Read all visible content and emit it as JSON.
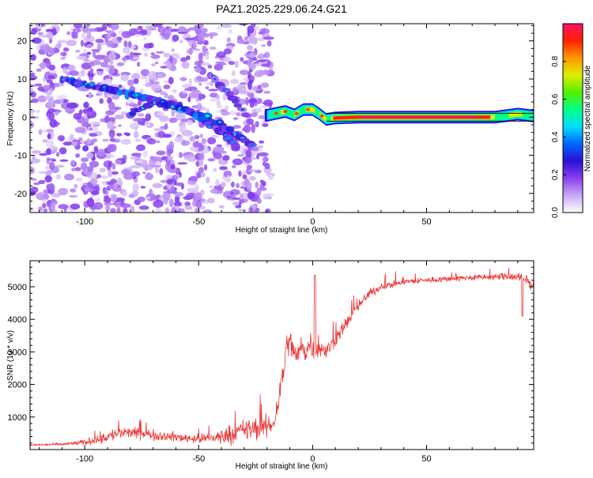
{
  "title": "PAZ1.2025.229.06.24.G21",
  "chart_data": [
    {
      "type": "heatmap",
      "xlabel": "Height of straight line (km)",
      "ylabel": "Frequency (Hz)",
      "xlim": [
        -124,
        97
      ],
      "ylim": [
        -25,
        24.5
      ],
      "xticks": [
        -100,
        -50,
        0,
        50
      ],
      "yticks": [
        -20,
        -10,
        0,
        10,
        20
      ],
      "colorbar": {
        "label": "Normalized spectral amplitude",
        "range": [
          0,
          1
        ],
        "ticks": [
          0.0,
          0.2,
          0.4,
          0.6,
          0.8
        ],
        "colors": [
          "#ffffff",
          "#c9a8f5",
          "#8a3ff0",
          "#2a10d8",
          "#0066ff",
          "#00ddff",
          "#00ff88",
          "#55ee00",
          "#ddee00",
          "#ff9900",
          "#ff2200",
          "#ff1166"
        ]
      },
      "features": [
        {
          "name": "coherent ray",
          "x": [
            -20,
            -16,
            -12,
            -8,
            -4,
            0,
            3,
            6,
            10,
            20,
            40,
            60,
            80,
            90,
            97
          ],
          "y": [
            0.5,
            1.0,
            1.5,
            0.6,
            2.0,
            2.0,
            0.8,
            -0.6,
            -0.2,
            0.0,
            0.0,
            0.0,
            0.0,
            0.8,
            0.3
          ],
          "amp": [
            0.42,
            0.45,
            0.5,
            0.55,
            0.5,
            0.55,
            0.6,
            0.7,
            0.85,
            0.95,
            0.95,
            0.95,
            0.9,
            0.7,
            0.5
          ]
        },
        {
          "name": "multipath branch 1",
          "x": [
            -110,
            -95,
            -80,
            -65,
            -50,
            -40,
            -30,
            -25
          ],
          "y": [
            10,
            8,
            6,
            4,
            1,
            -2,
            -6,
            -8
          ],
          "amp": [
            0.25,
            0.3,
            0.3,
            0.3,
            0.28,
            0.25,
            0.22,
            0.2
          ]
        },
        {
          "name": "multipath branch 2",
          "x": [
            -80,
            -70,
            -60,
            -50,
            -40,
            -33
          ],
          "y": [
            1,
            4,
            3,
            0,
            -4,
            -8
          ],
          "amp": [
            0.2,
            0.3,
            0.35,
            0.3,
            0.25,
            0.2
          ]
        },
        {
          "name": "multipath branch 3",
          "x": [
            -45,
            -40,
            -35,
            -30,
            -27
          ],
          "y": [
            11,
            8,
            5,
            1,
            -2
          ],
          "amp": [
            0.15,
            0.18,
            0.2,
            0.18,
            0.15
          ]
        }
      ]
    },
    {
      "type": "line",
      "xlabel": "Height of straight line (km)",
      "ylabel": "SNR (10 * v/v)",
      "xlim": [
        -124,
        97
      ],
      "ylim": [
        0,
        5800
      ],
      "xticks": [
        -100,
        -50,
        0,
        50
      ],
      "yticks": [
        1000,
        2000,
        3000,
        4000,
        5000
      ],
      "color": "#ee3333",
      "series": [
        {
          "x": [
            -124,
            -110,
            -100,
            -95,
            -90,
            -85,
            -80,
            -70,
            -60,
            -50,
            -45,
            -40,
            -35,
            -30,
            -25,
            -20,
            -17,
            -15,
            -13,
            -11,
            -9,
            -7,
            -5,
            -3,
            -1,
            1,
            3,
            6,
            10,
            15,
            20,
            25,
            30,
            40,
            50,
            60,
            70,
            80,
            85,
            90,
            93,
            95,
            97
          ],
          "mean": [
            140,
            160,
            220,
            320,
            400,
            500,
            520,
            450,
            380,
            330,
            350,
            400,
            500,
            600,
            650,
            700,
            800,
            1500,
            2400,
            3300,
            3200,
            2800,
            3200,
            3000,
            3300,
            3000,
            3100,
            3000,
            3400,
            3900,
            4400,
            4800,
            5000,
            5150,
            5200,
            5250,
            5280,
            5300,
            5320,
            5300,
            5200,
            5150,
            5000
          ],
          "noise": [
            60,
            60,
            120,
            250,
            280,
            300,
            250,
            230,
            220,
            200,
            280,
            350,
            450,
            500,
            550,
            500,
            400,
            600,
            700,
            700,
            600,
            550,
            500,
            500,
            550,
            500,
            450,
            400,
            350,
            300,
            250,
            200,
            180,
            150,
            140,
            140,
            140,
            150,
            180,
            250,
            300,
            280,
            250
          ]
        }
      ]
    }
  ]
}
